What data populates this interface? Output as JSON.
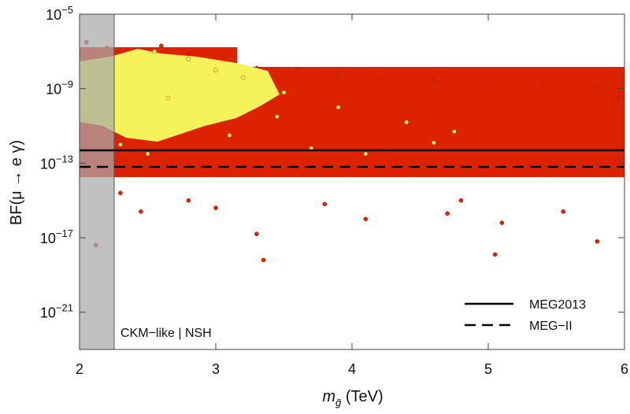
{
  "chart_data": {
    "type": "scatter",
    "title": "",
    "xlabel": "(TeV)",
    "xlabel_symbol": "m",
    "xlabel_subscript": "g̃",
    "ylabel": "BF(μ → e γ)",
    "xlim": [
      2,
      6
    ],
    "ylim_log10": [
      -23,
      -5
    ],
    "x_ticks": [
      {
        "value": 2,
        "label": "2"
      },
      {
        "value": 3,
        "label": "3"
      },
      {
        "value": 4,
        "label": "4"
      },
      {
        "value": 5,
        "label": "5"
      },
      {
        "value": 6,
        "label": "6"
      }
    ],
    "y_ticks": [
      {
        "exp": -5,
        "base": "10",
        "sup": "−5"
      },
      {
        "exp": -9,
        "base": "10",
        "sup": "−9"
      },
      {
        "exp": -13,
        "base": "10",
        "sup": "−13"
      },
      {
        "exp": -17,
        "base": "10",
        "sup": "−17"
      },
      {
        "exp": -21,
        "base": "10",
        "sup": "−21"
      }
    ],
    "excluded_region": {
      "x_from": 2,
      "x_to": 2.26,
      "color": "#a9a9a9"
    },
    "reference_lines": [
      {
        "name": "MEG2013",
        "value_log10": -12.4,
        "style": "solid"
      },
      {
        "name": "MEG-II",
        "value_log10": -12.9,
        "style": "dashed"
      }
    ],
    "series": [
      {
        "name": "all points",
        "color": "#dd2200",
        "points_log10": [
          [
            2.05,
            -6.5
          ],
          [
            2.2,
            -6.8
          ],
          [
            2.6,
            -6.7
          ],
          [
            2.35,
            -7.0
          ],
          [
            2.5,
            -6.9
          ],
          [
            2.8,
            -7.2
          ],
          [
            3.0,
            -7.6
          ],
          [
            3.3,
            -7.9
          ],
          [
            3.6,
            -8.0
          ],
          [
            3.9,
            -8.3
          ],
          [
            4.2,
            -8.5
          ],
          [
            4.6,
            -8.6
          ],
          [
            5.0,
            -8.7
          ],
          [
            5.4,
            -8.8
          ],
          [
            5.8,
            -8.9
          ],
          [
            5.95,
            -9.5
          ],
          [
            2.3,
            -14.6
          ],
          [
            2.45,
            -15.6
          ],
          [
            3.0,
            -15.4
          ],
          [
            3.3,
            -16.8
          ],
          [
            4.1,
            -16.0
          ],
          [
            4.7,
            -15.7
          ],
          [
            5.1,
            -16.2
          ],
          [
            5.55,
            -15.6
          ],
          [
            5.8,
            -17.2
          ],
          [
            5.05,
            -17.9
          ],
          [
            4.8,
            -15.0
          ],
          [
            3.8,
            -15.2
          ],
          [
            2.8,
            -15.0
          ],
          [
            3.35,
            -18.2
          ],
          [
            2.12,
            -17.4
          ]
        ]
      },
      {
        "name": "yellow points",
        "color": "#f5f25a",
        "points_log10": [
          [
            2.55,
            -7.0
          ],
          [
            2.8,
            -7.4
          ],
          [
            3.0,
            -8.0
          ],
          [
            3.2,
            -8.4
          ],
          [
            3.5,
            -9.2
          ],
          [
            3.9,
            -10.0
          ],
          [
            4.4,
            -10.8
          ],
          [
            4.75,
            -11.3
          ],
          [
            2.5,
            -12.5
          ],
          [
            2.3,
            -12.0
          ],
          [
            3.1,
            -11.5
          ],
          [
            3.7,
            -12.2
          ],
          [
            4.1,
            -12.5
          ],
          [
            4.6,
            -11.9
          ],
          [
            2.65,
            -9.5
          ],
          [
            3.45,
            -10.5
          ]
        ]
      }
    ],
    "legend": [
      {
        "label": "MEG2013",
        "style": "solid"
      },
      {
        "label": "MEG−II",
        "style": "dashed"
      }
    ],
    "legend_position": "bottom-right",
    "annotation": "CKM−like | NSH"
  }
}
